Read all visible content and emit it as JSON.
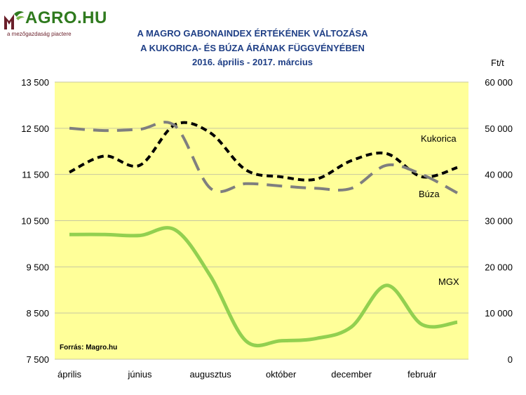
{
  "logo": {
    "brand": "MAGRO.HU",
    "brand_rest": "AGRO.HU",
    "tagline": "a mezőgazdaság piactere"
  },
  "title_lines": [
    "A MAGRO GABONAINDEX ÉRTÉKÉNEK VÁLTOZÁSA",
    "A KUKORICA- ÉS BÚZA ÁRÁNAK FÜGGVÉNYÉBEN",
    "2016. április - 2017. március"
  ],
  "unit_label": "Ft/t",
  "source_note": "Forrás:  Magro.hu",
  "colors": {
    "plot_background": "#ffff99",
    "gridline": "#c8c8a0",
    "mgx": "#92d050",
    "kukorica": "#000000",
    "buza": "#7f7f7f",
    "title": "#1f3f86",
    "logo_green": "#2f7a1e",
    "logo_red": "#6a1f2a"
  },
  "chart_data": {
    "type": "line",
    "title": "A MAGRO GABONAINDEX ÉRTÉKÉNEK VÁLTOZÁSA A KUKORICA- ÉS BÚZA ÁRÁNAK FÜGGVÉNYÉBEN",
    "subtitle": "2016. április - 2017. március",
    "x": [
      0,
      1,
      2,
      3,
      4,
      5,
      6,
      7,
      8,
      9,
      10,
      11
    ],
    "x_tick_labels": [
      {
        "x": 0,
        "label": "április"
      },
      {
        "x": 2,
        "label": "június"
      },
      {
        "x": 4,
        "label": "augusztus"
      },
      {
        "x": 6,
        "label": "október"
      },
      {
        "x": 8,
        "label": "december"
      },
      {
        "x": 10,
        "label": "február"
      }
    ],
    "y_left": {
      "min": 7500,
      "max": 13500,
      "ticks": [
        7500,
        8500,
        9500,
        10500,
        11500,
        12500,
        13500
      ],
      "tick_labels": [
        "7 500",
        "8 500",
        "9 500",
        "10 500",
        "11 500",
        "12 500",
        "13 500"
      ]
    },
    "y_right": {
      "label": "Ft/t",
      "min": 0,
      "max": 60000,
      "ticks": [
        0,
        10000,
        20000,
        30000,
        40000,
        50000,
        60000
      ],
      "tick_labels": [
        "0",
        "10 000",
        "20 000",
        "30 000",
        "40 000",
        "50 000",
        "60 000"
      ]
    },
    "grid": true,
    "series": [
      {
        "name": "MGX",
        "axis": "left",
        "style": "solid",
        "values": [
          10200,
          10200,
          10180,
          10300,
          9300,
          7900,
          7900,
          7950,
          8200,
          9100,
          8250,
          8300
        ]
      },
      {
        "name": "Kukorica",
        "axis": "right",
        "style": "dotted",
        "values": [
          40500,
          44000,
          42000,
          50800,
          49000,
          41000,
          39500,
          39000,
          43000,
          44500,
          39500,
          41500
        ]
      },
      {
        "name": "Búza",
        "axis": "right",
        "style": "dashed",
        "values": [
          50000,
          49500,
          49800,
          50500,
          37000,
          38000,
          37500,
          37000,
          37000,
          42000,
          40000,
          36000
        ]
      }
    ],
    "series_labels": [
      "Kukorica",
      "Búza",
      "MGX"
    ]
  }
}
